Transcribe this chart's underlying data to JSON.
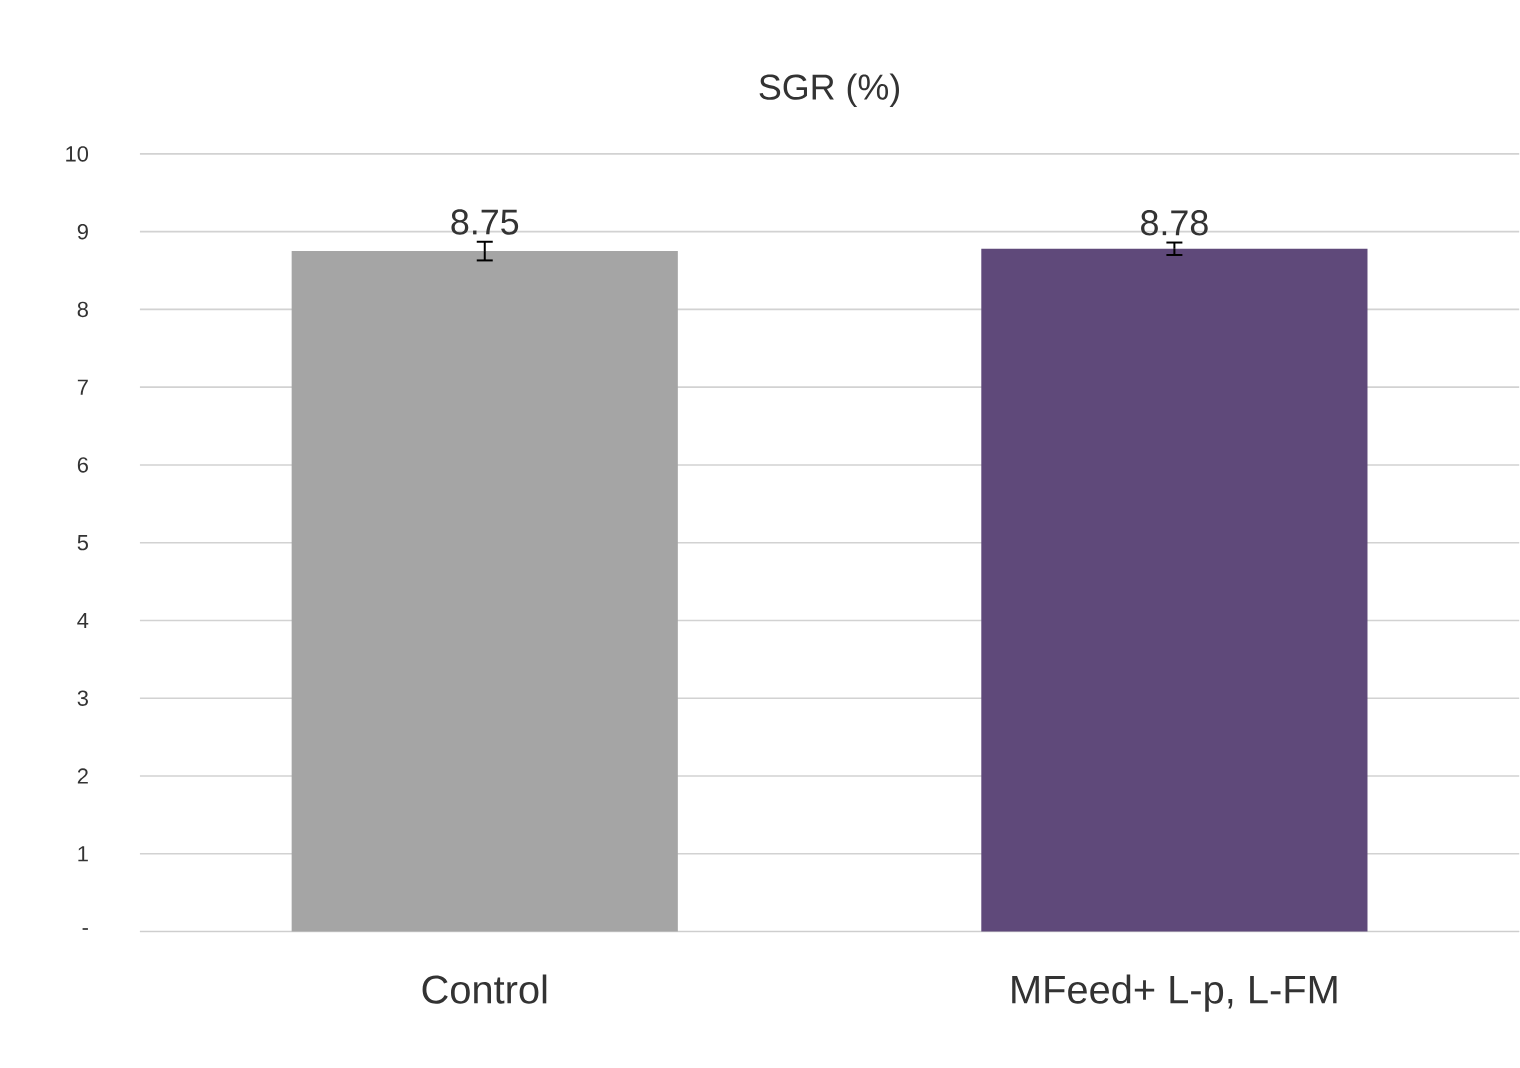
{
  "chart_data": {
    "type": "bar",
    "title": "SGR (%)",
    "categories": [
      "Control",
      "MFeed+ L-p, L-FM"
    ],
    "values": [
      8.75,
      8.78
    ],
    "colors": [
      "#a5a5a5",
      "#5f497a"
    ],
    "errors": [
      0.12,
      0.08
    ],
    "data_labels": true,
    "ylim": [
      0,
      10
    ],
    "yticks": [
      {
        "value": 0,
        "label": "-"
      },
      1,
      2,
      3,
      4,
      5,
      6,
      7,
      8,
      9,
      10
    ],
    "grid": "y"
  }
}
